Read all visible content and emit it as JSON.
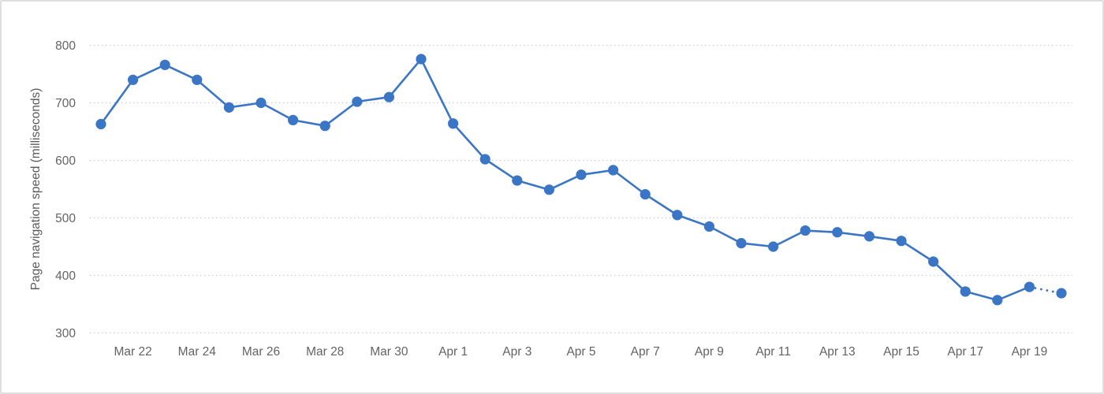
{
  "chart_data": {
    "type": "line",
    "title": "",
    "xlabel": "",
    "ylabel": "Page navigation speed (milliseconds)",
    "series_name": "Page navigation speed",
    "x": [
      "Mar 21",
      "Mar 22",
      "Mar 23",
      "Mar 24",
      "Mar 25",
      "Mar 26",
      "Mar 27",
      "Mar 28",
      "Mar 29",
      "Mar 30",
      "Mar 31",
      "Apr 1",
      "Apr 2",
      "Apr 3",
      "Apr 4",
      "Apr 5",
      "Apr 6",
      "Apr 7",
      "Apr 8",
      "Apr 9",
      "Apr 10",
      "Apr 11",
      "Apr 12",
      "Apr 13",
      "Apr 14",
      "Apr 15",
      "Apr 16",
      "Apr 17",
      "Apr 18",
      "Apr 19",
      "Apr 20"
    ],
    "values": [
      663,
      740,
      766,
      740,
      692,
      700,
      670,
      660,
      702,
      710,
      776,
      664,
      602,
      565,
      549,
      575,
      583,
      541,
      505,
      485,
      456,
      450,
      478,
      475,
      468,
      460,
      424,
      372,
      357,
      380,
      369
    ],
    "x_tick_labels": [
      "Mar 22",
      "Mar 24",
      "Mar 26",
      "Mar 28",
      "Mar 30",
      "Apr 1",
      "Apr 3",
      "Apr 5",
      "Apr 7",
      "Apr 9",
      "Apr 11",
      "Apr 13",
      "Apr 15",
      "Apr 17",
      "Apr 19"
    ],
    "x_tick_indices": [
      1,
      3,
      5,
      7,
      9,
      11,
      13,
      15,
      17,
      19,
      21,
      23,
      25,
      27,
      29
    ],
    "y_ticks": [
      800,
      700,
      600,
      500,
      400,
      300
    ],
    "ylim": [
      300,
      800
    ],
    "grid": "horizontal-dotted",
    "legend": "none",
    "marker": "circle",
    "dotted_segment_start_index": 29,
    "colors": {
      "line": "#3B76C6",
      "marker": "#3B76C6",
      "grid": "#CFCFCF",
      "tick_text": "#636363",
      "axis_title_text": "#5A5A5A",
      "card_border": "#DEDEDE",
      "background": "#FFFFFF"
    }
  }
}
